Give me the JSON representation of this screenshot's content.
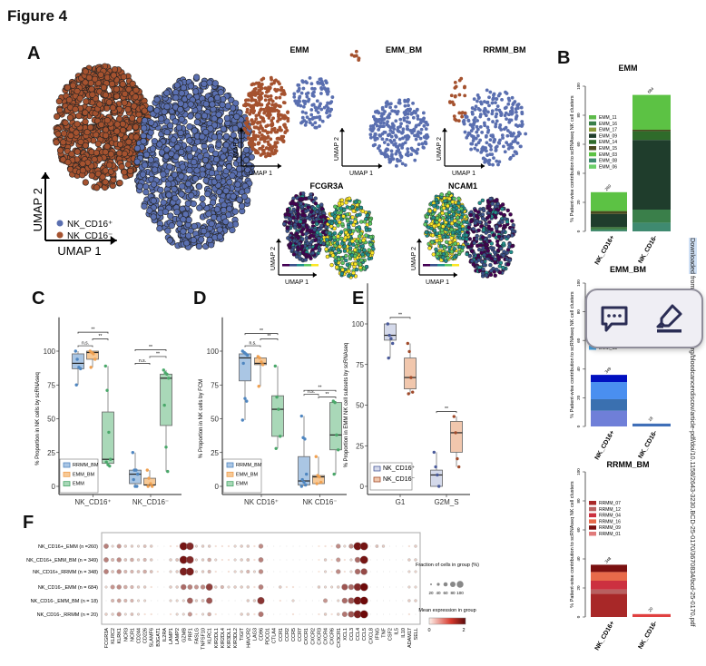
{
  "figure_title": "Figure 4",
  "panel_labels": {
    "A": "A",
    "B": "B",
    "C": "C",
    "D": "D",
    "E": "E",
    "F": "F"
  },
  "panel_a": {
    "axis_x": "UMAP 1",
    "axis_y": "UMAP 2",
    "legend": [
      {
        "label": "NK_CD16⁺",
        "color": "#5a6fb0"
      },
      {
        "label": "NK_CD16⁻",
        "color": "#a5522f"
      }
    ],
    "subsets": [
      "EMM",
      "EMM_BM",
      "RRMM_BM"
    ],
    "genes": [
      "FCGR3A",
      "NCAM1"
    ],
    "colors": {
      "cd16pos": "#5a6fb0",
      "cd16neg": "#a5522f"
    }
  },
  "panel_b": {
    "y_label": "% Patient-wise contribution to scRNAseq NK cell clusters",
    "y_ticks": [
      0,
      20,
      40,
      60,
      80,
      100
    ],
    "x_categories": [
      "NK_CD16+",
      "NK_CD16-"
    ],
    "charts": [
      {
        "title": "EMM",
        "totals": [
          "260",
          "684"
        ],
        "legend": [
          {
            "label": "EMM_11",
            "color": "#5dbb4a"
          },
          {
            "label": "EMM_16",
            "color": "#3a7f4a"
          },
          {
            "label": "EMM_17",
            "color": "#8a9a3a"
          },
          {
            "label": "EMM_09",
            "color": "#1f3d2c"
          },
          {
            "label": "EMM_14",
            "color": "#2f6b2a"
          },
          {
            "label": "EMM_15",
            "color": "#4a4a1f"
          },
          {
            "label": "EMM_03",
            "color": "#5cc244"
          },
          {
            "label": "EMM_08",
            "color": "#3f8a70"
          },
          {
            "label": "EMM_06",
            "color": "#6ccf6a"
          }
        ],
        "bars": [
          [
            {
              "value": 1,
              "color": "#3f8a70"
            },
            {
              "value": 1,
              "color": "#3a7f4a"
            },
            {
              "value": 1,
              "color": "#2f6b2a"
            },
            {
              "value": 9,
              "color": "#1f3d2c"
            },
            {
              "value": 2,
              "color": "#4a4a1f"
            },
            {
              "value": 13,
              "color": "#5cc244"
            }
          ],
          [
            {
              "value": 6,
              "color": "#3f8a70"
            },
            {
              "value": 9,
              "color": "#3a7f4a"
            },
            {
              "value": 48,
              "color": "#1f3d2c"
            },
            {
              "value": 6,
              "color": "#2f6b2a"
            },
            {
              "value": 1,
              "color": "#4a4a1f"
            },
            {
              "value": 24,
              "color": "#5cc244"
            }
          ]
        ]
      },
      {
        "title": "EMM_BM",
        "totals": [
          "349",
          "18"
        ],
        "legend": [
          {
            "label": "EMM_13",
            "color": "#4aa8e8"
          }
        ],
        "bars": [
          [
            {
              "value": 11,
              "color": "#6f7fd8"
            },
            {
              "value": 8,
              "color": "#3a70b0"
            },
            {
              "value": 12,
              "color": "#4a8ff0"
            },
            {
              "value": 5,
              "color": "#0010c0"
            }
          ],
          [
            {
              "value": 2,
              "color": "#3f6fb8"
            }
          ]
        ]
      },
      {
        "title": "RRMM_BM",
        "totals": [
          "348",
          "20"
        ],
        "legend": [
          {
            "label": "RRMM_07",
            "color": "#a82828"
          },
          {
            "label": "RRMM_12",
            "color": "#b86060"
          },
          {
            "label": "RRMM_04",
            "color": "#cc3040"
          },
          {
            "label": "RRMM_16",
            "color": "#e86a4a"
          },
          {
            "label": "RRMM_09",
            "color": "#7a1010"
          },
          {
            "label": "RRMM_01",
            "color": "#e07a7a"
          }
        ],
        "bars": [
          [
            {
              "value": 16,
              "color": "#a82828"
            },
            {
              "value": 3,
              "color": "#b86060"
            },
            {
              "value": 6,
              "color": "#cc3040"
            },
            {
              "value": 6,
              "color": "#e86a4a"
            },
            {
              "value": 5,
              "color": "#7a1010"
            }
          ],
          [
            {
              "value": 2,
              "color": "#e04040"
            }
          ]
        ]
      }
    ]
  },
  "panel_c": {
    "y_label": "% Proportion in NK cells by scRNAseq",
    "y_ticks": [
      0,
      25,
      50,
      75,
      100
    ],
    "groups": [
      "NK_CD16⁺",
      "NK_CD16⁻"
    ],
    "legend": [
      {
        "label": "RRMM_BM",
        "color": "#4f86c0"
      },
      {
        "label": "EMM_BM",
        "color": "#f0a050"
      },
      {
        "label": "EMM",
        "color": "#4aa86a"
      }
    ],
    "boxes": [
      {
        "group": 0,
        "series": 0,
        "stats": [
          75,
          87,
          91,
          98,
          100
        ],
        "points": [
          100,
          94,
          88,
          87,
          75
        ]
      },
      {
        "group": 0,
        "series": 1,
        "stats": [
          88,
          94,
          99,
          100,
          100
        ],
        "points": [
          100,
          99,
          98,
          94,
          88
        ]
      },
      {
        "group": 0,
        "series": 2,
        "stats": [
          15,
          17,
          20,
          55,
          89
        ],
        "points": [
          89,
          71,
          40,
          20,
          18,
          16,
          15
        ]
      },
      {
        "group": 1,
        "series": 0,
        "stats": [
          0,
          2,
          9,
          12,
          25
        ],
        "points": [
          25,
          12,
          12,
          9,
          5,
          0,
          0
        ]
      },
      {
        "group": 1,
        "series": 1,
        "stats": [
          0,
          1,
          1,
          6,
          12
        ],
        "points": [
          12,
          6,
          2,
          0,
          0
        ]
      },
      {
        "group": 1,
        "series": 2,
        "stats": [
          11,
          45,
          80,
          83,
          86
        ],
        "points": [
          86,
          84,
          83,
          80,
          60,
          29,
          11
        ]
      }
    ],
    "significance": [
      {
        "from": [
          0,
          0
        ],
        "to": [
          0,
          2
        ],
        "level": 114,
        "text": "**"
      },
      {
        "from": [
          0,
          1
        ],
        "to": [
          0,
          2
        ],
        "level": 109,
        "text": "**"
      },
      {
        "from": [
          0,
          0
        ],
        "to": [
          0,
          1
        ],
        "level": 104,
        "text": "n.s."
      },
      {
        "from": [
          1,
          0
        ],
        "to": [
          1,
          2
        ],
        "level": 101,
        "text": "**"
      },
      {
        "from": [
          1,
          1
        ],
        "to": [
          1,
          2
        ],
        "level": 96,
        "text": "**"
      },
      {
        "from": [
          1,
          0
        ],
        "to": [
          1,
          1
        ],
        "level": 91,
        "text": "n.s."
      }
    ]
  },
  "panel_d": {
    "y_label": "% Proportion in NK cells by FCM",
    "y_ticks": [
      0,
      25,
      50,
      75,
      100
    ],
    "groups": [
      "NK CD16⁺",
      "NK CD16⁻"
    ],
    "legend": [
      {
        "label": "RRMM_BM",
        "color": "#4f86c0"
      },
      {
        "label": "EMM_BM",
        "color": "#f0a050"
      },
      {
        "label": "EMM",
        "color": "#4aa86a"
      }
    ],
    "boxes": [
      {
        "group": 0,
        "series": 0,
        "stats": [
          49,
          78,
          95,
          98,
          100
        ],
        "points": [
          100,
          99,
          98,
          97,
          91,
          65,
          63,
          49
        ]
      },
      {
        "group": 0,
        "series": 1,
        "stats": [
          74,
          90,
          91,
          95,
          96
        ],
        "points": [
          96,
          95,
          92,
          90,
          74
        ]
      },
      {
        "group": 0,
        "series": 2,
        "stats": [
          28,
          37,
          57,
          67,
          89
        ],
        "points": [
          89,
          66,
          57,
          37,
          28
        ]
      },
      {
        "group": 1,
        "series": 0,
        "stats": [
          0,
          1,
          4,
          22,
          52
        ],
        "points": [
          52,
          36,
          35,
          9,
          5,
          3,
          1,
          0
        ]
      },
      {
        "group": 1,
        "series": 1,
        "stats": [
          2,
          2,
          7,
          8,
          22
        ],
        "points": [
          22,
          8,
          7,
          3,
          2
        ]
      },
      {
        "group": 1,
        "series": 2,
        "stats": [
          9,
          27,
          38,
          62,
          63
        ],
        "points": [
          63,
          62,
          38,
          27,
          9
        ]
      }
    ],
    "significance": [
      {
        "from": [
          0,
          0
        ],
        "to": [
          0,
          2
        ],
        "level": 113,
        "text": "**"
      },
      {
        "from": [
          0,
          1
        ],
        "to": [
          0,
          2
        ],
        "level": 109,
        "text": "**"
      },
      {
        "from": [
          0,
          0
        ],
        "to": [
          0,
          1
        ],
        "level": 104,
        "text": "n.s."
      },
      {
        "from": [
          1,
          0
        ],
        "to": [
          1,
          2
        ],
        "level": 71,
        "text": "**"
      },
      {
        "from": [
          1,
          1
        ],
        "to": [
          1,
          2
        ],
        "level": 66,
        "text": "**"
      },
      {
        "from": [
          1,
          0
        ],
        "to": [
          1,
          1
        ],
        "level": 68,
        "text": "n.s."
      }
    ]
  },
  "panel_e": {
    "y_label": "% Proportion in EMM NK cell subsets by scRNAseq",
    "y_ticks": [
      0,
      25,
      50,
      75,
      100
    ],
    "groups": [
      "G1",
      "G2M_S"
    ],
    "legend": [
      {
        "label": "NK_CD16⁺",
        "color": "#4a5a9a"
      },
      {
        "label": "NK_CD16⁻",
        "color": "#a04a2a"
      }
    ],
    "box_fill": [
      "#d4d9ea",
      "#f1c7ad"
    ],
    "boxes": [
      {
        "group": 0,
        "series": 0,
        "stats": [
          79,
          90,
          93,
          100,
          100
        ],
        "points": [
          100,
          93,
          91,
          88,
          79
        ]
      },
      {
        "group": 0,
        "series": 1,
        "stats": [
          57,
          60,
          67,
          79,
          88
        ],
        "points": [
          88,
          83,
          67,
          58,
          57
        ]
      },
      {
        "group": 1,
        "series": 0,
        "stats": [
          0,
          0,
          7,
          10,
          21
        ],
        "points": [
          21,
          12,
          7,
          0
        ]
      },
      {
        "group": 1,
        "series": 1,
        "stats": [
          12,
          21,
          33,
          40,
          43
        ],
        "points": [
          43,
          33,
          17,
          12
        ]
      }
    ],
    "significance": [
      {
        "from": [
          0,
          0
        ],
        "to": [
          0,
          1
        ],
        "level": 104,
        "text": "**"
      },
      {
        "from": [
          1,
          0
        ],
        "to": [
          1,
          1
        ],
        "level": 46,
        "text": "**"
      }
    ]
  },
  "panel_f": {
    "rows": [
      "NK_CD16+_EMM (n =260)",
      "NK_CD16+_EMM_BM (n = 349)",
      "NK_CD16+_RRMM (n = 348)",
      "NK_CD16-_EMM (n = 684)",
      "NK_CD16-_EMM_BM (n = 18)",
      "NK_CD16-_RRMM (n = 20)"
    ],
    "genes": [
      "FCGR3A",
      "KLRC2",
      "KLRK1",
      "NCR3",
      "NCR1",
      "CD244",
      "CD226",
      "SLAMF6",
      "B3GAT1",
      "IL2RA",
      "LAMP1",
      "LAMP2",
      "GZMB",
      "PRF1",
      "FASLG",
      "TNFSF10",
      "KLRC1",
      "KIR2DL1",
      "KIR2DL4",
      "KIR3DL1",
      "KIR3DL2",
      "TIGIT",
      "HAVCR2",
      "LAG3",
      "CD96",
      "PDCD1",
      "CTLA4",
      "CCR1",
      "CCR2",
      "CCR5",
      "CCR7",
      "CXCR1",
      "CXCR2",
      "CXCR3",
      "CXCR4",
      "CXCR6",
      "CX3CR1",
      "XCL1",
      "CCL3",
      "CCL4",
      "CCL5",
      "CXCL8",
      "IFNG",
      "TNF",
      "CSF2",
      "IL5",
      "IL10",
      "ADAM17",
      "SELL"
    ],
    "mean_expression": [
      [
        1.0,
        0.2,
        0.8,
        0.3,
        0.3,
        0.2,
        0.4,
        0.3,
        0,
        0,
        0.1,
        0.1,
        2.0,
        1.8,
        0.2,
        0.3,
        0.3,
        0.1,
        0.1,
        0.1,
        0.2,
        0.3,
        0.3,
        0.1,
        0.9,
        0,
        0,
        0,
        0,
        0,
        0,
        0,
        0,
        0.05,
        0.1,
        0.05,
        0.9,
        0.2,
        0.9,
        2.0,
        2.0,
        0,
        0.4,
        0.3,
        0,
        0,
        0,
        0.1,
        0.3
      ],
      [
        1.0,
        0.5,
        0.9,
        0.4,
        0.6,
        0.3,
        0.5,
        0.3,
        0,
        0,
        0.3,
        0.4,
        2.0,
        1.8,
        0.2,
        0.3,
        0.6,
        0.2,
        0.1,
        0.1,
        0.2,
        0.3,
        0.4,
        0.1,
        1.0,
        0,
        0,
        0,
        0,
        0,
        0,
        0,
        0,
        0.05,
        0.3,
        0.05,
        0.8,
        0.1,
        0.2,
        1.2,
        2.0,
        0,
        0,
        0,
        0,
        0,
        0,
        0.3,
        0.3
      ],
      [
        1.0,
        0.4,
        0.9,
        0.5,
        0.5,
        0.4,
        0.6,
        0.4,
        0.1,
        0,
        0.2,
        0.3,
        1.9,
        1.9,
        0.2,
        0.3,
        0.5,
        0.1,
        0,
        0.1,
        0.2,
        0.3,
        0.5,
        0.2,
        0.9,
        0,
        0,
        0,
        0,
        0,
        0,
        0,
        0,
        0.05,
        0.2,
        0.05,
        0.9,
        0.1,
        0.2,
        1.2,
        1.5,
        0,
        0,
        0,
        0,
        0,
        0,
        0.2,
        0.2
      ],
      [
        0.2,
        0.8,
        0.9,
        0.6,
        0.5,
        0.3,
        0.3,
        0.1,
        0,
        0,
        0.3,
        0.3,
        1.2,
        1.0,
        0.8,
        0.9,
        1.6,
        0.3,
        0.5,
        0.2,
        0.3,
        0.3,
        0.3,
        0.1,
        1.0,
        0,
        0,
        0.3,
        0.1,
        0.1,
        0,
        0,
        0,
        0.3,
        0.2,
        0.2,
        0.3,
        1.4,
        1.2,
        1.8,
        2.2,
        0,
        0,
        0,
        0,
        0,
        0,
        0.2,
        0.2
      ],
      [
        0,
        0.5,
        0.7,
        0.5,
        0.5,
        0.2,
        0.2,
        0,
        0,
        0,
        0.2,
        0.2,
        0.2,
        1.3,
        0.3,
        0.4,
        1.4,
        0,
        0,
        0,
        0,
        0,
        0.3,
        0.3,
        1.7,
        0,
        0,
        0.1,
        0,
        0.2,
        0,
        0,
        0,
        0,
        0.8,
        0,
        0.2,
        1.2,
        1.4,
        2.0,
        2.1,
        0,
        0,
        0,
        0,
        0,
        0,
        0.3,
        0.3
      ],
      [
        0.3,
        0.3,
        0.8,
        0.2,
        0.4,
        0.2,
        0.1,
        0.1,
        0,
        0,
        0.1,
        0.2,
        0.2,
        0.8,
        0.1,
        0.2,
        0.6,
        0.1,
        0,
        0,
        0,
        0.3,
        0.3,
        0.1,
        1.1,
        0,
        0,
        0,
        0,
        0.1,
        0,
        0,
        0,
        0.1,
        0.3,
        0.1,
        0.3,
        1.1,
        1.4,
        1.9,
        2.1,
        0,
        0,
        0,
        0,
        0,
        0,
        0.1,
        0
      ]
    ],
    "legend_fraction_title": "Fraction of cells in group (%)",
    "legend_fraction_ticks": [
      "20",
      "40",
      "60",
      "80",
      "100"
    ],
    "legend_expression_title": "Mean expression in group",
    "legend_expression_range": [
      "0",
      "2"
    ]
  },
  "side_note": {
    "highlight": "Downloaded",
    "rest": " from http://aacrjournals.org/bloodcancerdiscov/article-pdf/doi/10.1158/2643-3230.BCD-25-0170/3670834/bcd-25-0170.pdf"
  },
  "popup": {
    "buttons": [
      {
        "icon": "comment-icon"
      },
      {
        "icon": "highlighter-icon"
      }
    ],
    "icon_color": "#2b2d55"
  }
}
